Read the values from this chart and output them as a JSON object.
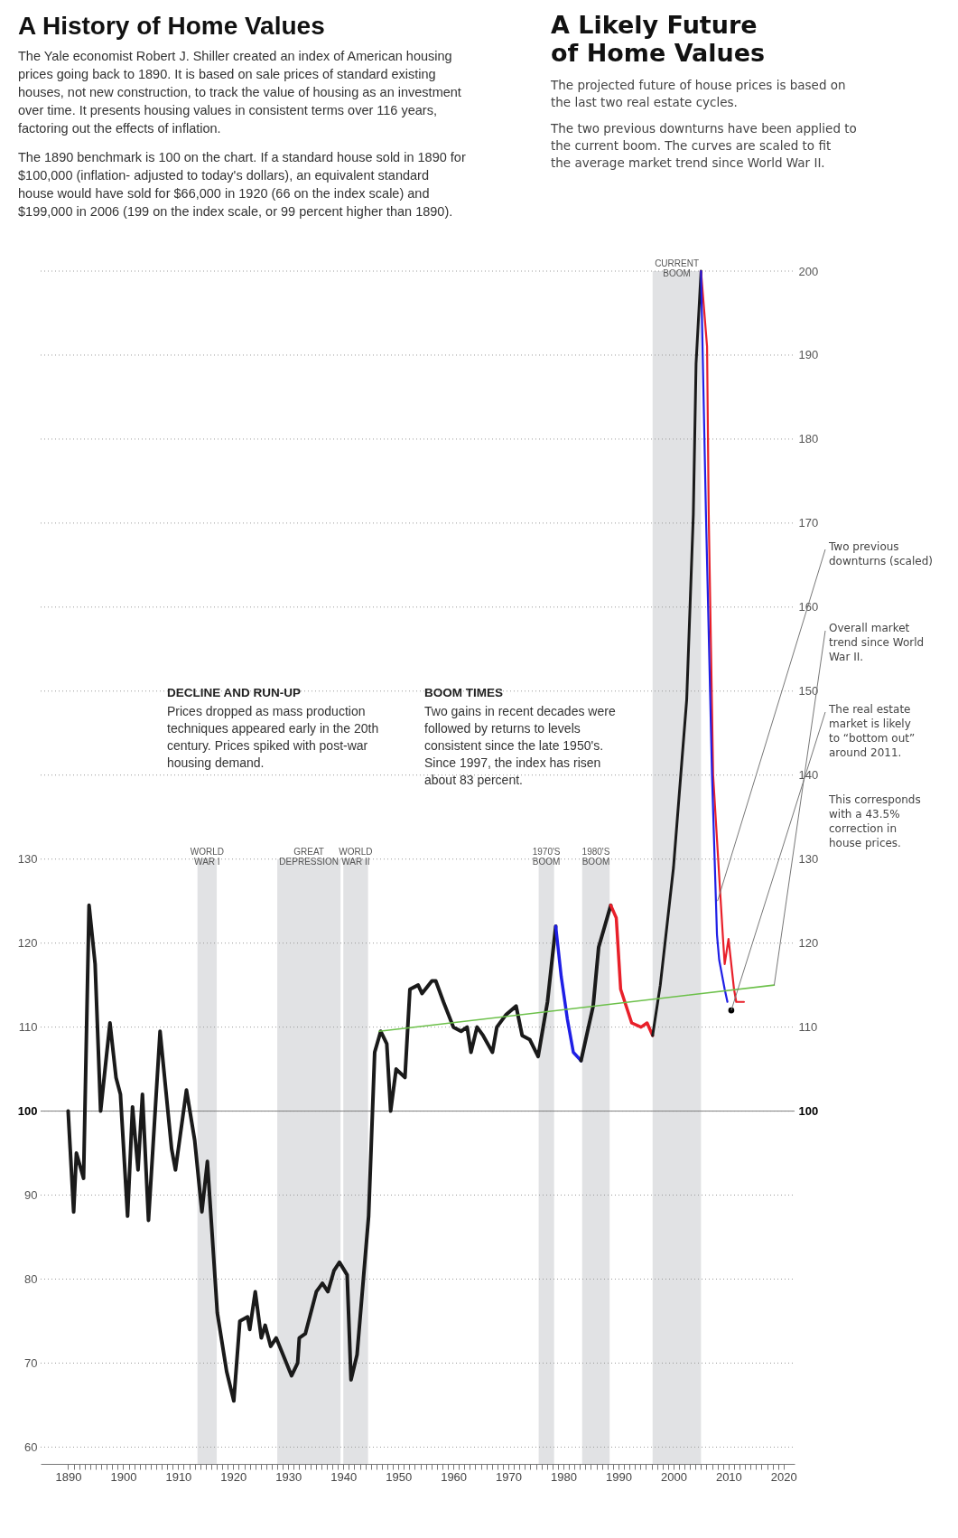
{
  "chart_data": {
    "type": "line",
    "title": "A History of Home Values",
    "annotations": [
      "The Yale economist Robert J. Shiller created an index of American housing prices going back to 1890. It is based on sale prices of standard existing houses, not new construction, to track the value of housing as an investment over time. It presents housing values in consistent terms over 116 years, factoring out the effects of inflation.",
      "The 1890 benchmark is 100 on the chart. If a standard house sold in 1890 for $100,000 (inflation- adjusted to today's dollars), an equivalent standard house would have sold for $66,000 in 1920 (66 on the index scale) and $199,000 in 2006 (199 on the index scale, or 99 percent higher than 1890).",
      "DECLINE AND RUN-UP",
      "Prices dropped as mass production techniques appeared early in the 20th century. Prices spiked with post-war housing demand.",
      "BOOM TIMES",
      "Two gains in recent decades were followed by returns to levels consistent since the late 1950's. Since 1997, the index has risen about 83 percent.",
      "A Likely Future of Home Values",
      "The projected future of house prices is based on the last two real estate cycles.",
      "The two previous downturns have been applied to the current boom. The curves are scaled to fit the average market trend since World War II.",
      {
        "text": "Two previous downturns (scaled)",
        "x": 2008,
        "y": 125
      },
      {
        "text": "Overall market trend since World War II.",
        "x": 2018.3,
        "y": 115
      },
      {
        "text": "The real estate market is likely to “bottom out” around 2011.",
        "x": 2010.5,
        "y": 112
      },
      "This corresponds with a 43.5% correction in house prices."
    ],
    "series": [
      {
        "color": "#1a1a1a",
        "x": [
          1890,
          1891,
          1891.5,
          1892.8,
          1893.8,
          1894.9,
          1895.9,
          1897.6,
          1898.7,
          1899.5,
          1900.8,
          1901.7,
          1902.7,
          1903.5,
          1904.6,
          1906.7,
          1908.8,
          1909.5,
          1911.5,
          1913,
          1914.3,
          1915.3,
          1917.1,
          1918.8,
          1920.1,
          1921.2,
          1922.6,
          1923,
          1924,
          1925.1,
          1925.8,
          1926.8,
          1927.8,
          1930.6,
          1931.7,
          1932,
          1933.1,
          1934.1,
          1935.1,
          1936.2,
          1937.2,
          1938.3,
          1939.3,
          1940.7,
          1941.4,
          1942.5,
          1944.6,
          1945.7,
          1946.8,
          1947.9,
          1948.6,
          1949.6,
          1950.4,
          1951.2,
          1952.1,
          1953.6,
          1954.3,
          1956.1,
          1956.8,
          1958.2,
          1960,
          1961.4,
          1962.5,
          1963.2,
          1964.3,
          1965.4,
          1967.1,
          1967.9,
          1969.6,
          1971.4,
          1972.5,
          1973.9,
          1975.4,
          1977.1,
          1978.6
        ],
        "values": [
          100,
          88,
          95,
          92,
          124.5,
          117.5,
          100,
          110.5,
          104,
          102,
          87.5,
          100.5,
          93,
          102,
          87,
          109.5,
          95.5,
          93,
          102.5,
          96.5,
          88,
          94,
          76,
          69,
          65.5,
          75,
          75.5,
          74,
          78.5,
          73,
          74.5,
          72,
          73,
          68.5,
          70,
          73,
          73.5,
          76,
          78.5,
          79.5,
          78.5,
          81,
          82,
          80.5,
          68,
          71,
          87.5,
          107,
          109.5,
          108,
          100,
          105,
          104.5,
          104,
          114.5,
          115,
          114,
          115.5,
          115.5,
          113,
          110,
          109.5,
          110,
          107,
          110,
          109,
          107,
          110,
          111.5,
          112.5,
          109,
          108.5,
          106.5,
          113,
          122
        ]
      },
      {
        "color": "#1f1fe6",
        "x": [
          1978.6,
          1979.6,
          1980.7,
          1981.8,
          1983.2
        ],
        "values": [
          122,
          116,
          111,
          107,
          106
        ]
      },
      {
        "color": "#1a1a1a",
        "x": [
          1983.2,
          1985.4,
          1986.4,
          1988.6
        ],
        "values": [
          106,
          112.5,
          119.5,
          124.5
        ]
      },
      {
        "color": "#e8202a",
        "x": [
          1988.6,
          1989.6,
          1990.4,
          1992.4,
          1994.1,
          1995.2,
          1996.2
        ],
        "values": [
          124.5,
          123,
          114.5,
          110.5,
          110,
          110.5,
          109
        ]
      },
      {
        "color": "#1a1a1a",
        "x": [
          1996.2,
          1997.6,
          2000,
          2002.4,
          2003.6,
          2004.1,
          2005
        ],
        "values": [
          109,
          115,
          129,
          149,
          171,
          189,
          200
        ]
      },
      {
        "color": "#e8202a",
        "x": [
          2005,
          2006.1,
          2006.4,
          2007.2,
          2008.3,
          2009,
          2009.3,
          2010,
          2011,
          2011.4,
          2012.8
        ],
        "values": [
          200,
          191,
          171,
          140,
          128,
          120.5,
          117.5,
          120.5,
          114.5,
          113,
          113
        ]
      },
      {
        "color": "#1f1fe6",
        "x": [
          2005,
          2005.9,
          2007,
          2007.9,
          2008.3,
          2009.3,
          2009.8
        ],
        "values": [
          200,
          171,
          140,
          121,
          118,
          114.5,
          113
        ]
      },
      {
        "color": "#6cc04a",
        "x": [
          1946.5,
          2018.3
        ],
        "values": [
          109.5,
          115
        ]
      },
      {
        "type": "scatter",
        "color": "#000000",
        "x": [
          2010.5
        ],
        "values": [
          112
        ]
      }
    ],
    "bands": [
      {
        "axis": "x",
        "from": 1913.5,
        "to": 1917,
        "label": "WORLD WAR I",
        "color": "#e1e2e4"
      },
      {
        "axis": "x",
        "from": 1928,
        "to": 1939.5,
        "label": "GREAT DEPRESSION",
        "color": "#e1e2e4"
      },
      {
        "axis": "x",
        "from": 1940,
        "to": 1944.5,
        "label": "WORLD WAR II",
        "color": "#e1e2e4"
      },
      {
        "axis": "x",
        "from": 1975.5,
        "to": 1978.3,
        "label": "1970'S BOOM",
        "color": "#e1e2e4"
      },
      {
        "axis": "x",
        "from": 1983.4,
        "to": 1988.4,
        "label": "1980'S BOOM",
        "color": "#e1e2e4"
      },
      {
        "axis": "x",
        "from": 1996.2,
        "to": 2005,
        "label": "CURRENT BOOM",
        "color": "#e1e2e4"
      }
    ],
    "ref_lines": [
      {
        "axis": "y",
        "value": 100,
        "color": "#808080"
      }
    ],
    "grid": true,
    "xlim": [
      1885,
      2022
    ],
    "xticks": [
      1890,
      {
        "value": 1891,
        "label": null
      },
      {
        "value": 1892,
        "label": null
      },
      {
        "value": 1893,
        "label": null
      },
      {
        "value": 1894,
        "label": null
      },
      {
        "value": 1895,
        "label": null
      },
      {
        "value": 1896,
        "label": null
      },
      {
        "value": 1897,
        "label": null
      },
      {
        "value": 1898,
        "label": null
      },
      {
        "value": 1899,
        "label": null
      },
      1900,
      {
        "value": 1901,
        "label": null
      },
      {
        "value": 1902,
        "label": null
      },
      {
        "value": 1903,
        "label": null
      },
      {
        "value": 1904,
        "label": null
      },
      {
        "value": 1905,
        "label": null
      },
      {
        "value": 1906,
        "label": null
      },
      {
        "value": 1907,
        "label": null
      },
      {
        "value": 1908,
        "label": null
      },
      {
        "value": 1909,
        "label": null
      },
      1910,
      {
        "value": 1911,
        "label": null
      },
      {
        "value": 1912,
        "label": null
      },
      {
        "value": 1913,
        "label": null
      },
      {
        "value": 1914,
        "label": null
      },
      {
        "value": 1915,
        "label": null
      },
      {
        "value": 1916,
        "label": null
      },
      {
        "value": 1917,
        "label": null
      },
      {
        "value": 1918,
        "label": null
      },
      {
        "value": 1919,
        "label": null
      },
      1920,
      {
        "value": 1921,
        "label": null
      },
      {
        "value": 1922,
        "label": null
      },
      {
        "value": 1923,
        "label": null
      },
      {
        "value": 1924,
        "label": null
      },
      {
        "value": 1925,
        "label": null
      },
      {
        "value": 1926,
        "label": null
      },
      {
        "value": 1927,
        "label": null
      },
      {
        "value": 1928,
        "label": null
      },
      {
        "value": 1929,
        "label": null
      },
      1930,
      {
        "value": 1931,
        "label": null
      },
      {
        "value": 1932,
        "label": null
      },
      {
        "value": 1933,
        "label": null
      },
      {
        "value": 1934,
        "label": null
      },
      {
        "value": 1935,
        "label": null
      },
      {
        "value": 1936,
        "label": null
      },
      {
        "value": 1937,
        "label": null
      },
      {
        "value": 1938,
        "label": null
      },
      {
        "value": 1939,
        "label": null
      },
      1940,
      {
        "value": 1941,
        "label": null
      },
      {
        "value": 1942,
        "label": null
      },
      {
        "value": 1943,
        "label": null
      },
      {
        "value": 1944,
        "label": null
      },
      {
        "value": 1945,
        "label": null
      },
      {
        "value": 1946,
        "label": null
      },
      {
        "value": 1947,
        "label": null
      },
      {
        "value": 1948,
        "label": null
      },
      {
        "value": 1949,
        "label": null
      },
      1950,
      {
        "value": 1951,
        "label": null
      },
      {
        "value": 1952,
        "label": null
      },
      {
        "value": 1953,
        "label": null
      },
      {
        "value": 1954,
        "label": null
      },
      {
        "value": 1955,
        "label": null
      },
      {
        "value": 1956,
        "label": null
      },
      {
        "value": 1957,
        "label": null
      },
      {
        "value": 1958,
        "label": null
      },
      {
        "value": 1959,
        "label": null
      },
      1960,
      {
        "value": 1961,
        "label": null
      },
      {
        "value": 1962,
        "label": null
      },
      {
        "value": 1963,
        "label": null
      },
      {
        "value": 1964,
        "label": null
      },
      {
        "value": 1965,
        "label": null
      },
      {
        "value": 1966,
        "label": null
      },
      {
        "value": 1967,
        "label": null
      },
      {
        "value": 1968,
        "label": null
      },
      {
        "value": 1969,
        "label": null
      },
      1970,
      {
        "value": 1971,
        "label": null
      },
      {
        "value": 1972,
        "label": null
      },
      {
        "value": 1973,
        "label": null
      },
      {
        "value": 1974,
        "label": null
      },
      {
        "value": 1975,
        "label": null
      },
      {
        "value": 1976,
        "label": null
      },
      {
        "value": 1977,
        "label": null
      },
      {
        "value": 1978,
        "label": null
      },
      {
        "value": 1979,
        "label": null
      },
      1980,
      {
        "value": 1981,
        "label": null
      },
      {
        "value": 1982,
        "label": null
      },
      {
        "value": 1983,
        "label": null
      },
      {
        "value": 1984,
        "label": null
      },
      {
        "value": 1985,
        "label": null
      },
      {
        "value": 1986,
        "label": null
      },
      {
        "value": 1987,
        "label": null
      },
      {
        "value": 1988,
        "label": null
      },
      {
        "value": 1989,
        "label": null
      },
      1990,
      {
        "value": 1991,
        "label": null
      },
      {
        "value": 1992,
        "label": null
      },
      {
        "value": 1993,
        "label": null
      },
      {
        "value": 1994,
        "label": null
      },
      {
        "value": 1995,
        "label": null
      },
      {
        "value": 1996,
        "label": null
      },
      {
        "value": 1997,
        "label": null
      },
      {
        "value": 1998,
        "label": null
      },
      {
        "value": 1999,
        "label": null
      },
      2000,
      {
        "value": 2001,
        "label": null
      },
      {
        "value": 2002,
        "label": null
      },
      {
        "value": 2003,
        "label": null
      },
      {
        "value": 2004,
        "label": null
      },
      {
        "value": 2005,
        "label": null
      },
      {
        "value": 2006,
        "label": null
      },
      {
        "value": 2007,
        "label": null
      },
      {
        "value": 2008,
        "label": null
      },
      {
        "value": 2009,
        "label": null
      },
      2010,
      {
        "value": 2011,
        "label": null
      },
      {
        "value": 2012,
        "label": null
      },
      {
        "value": 2013,
        "label": null
      },
      {
        "value": 2014,
        "label": null
      },
      {
        "value": 2015,
        "label": null
      },
      {
        "value": 2016,
        "label": null
      },
      {
        "value": 2017,
        "label": null
      },
      {
        "value": 2018,
        "label": null
      },
      {
        "value": 2019,
        "label": null
      },
      2020
    ],
    "ylim": [
      58,
      200
    ],
    "yticks": [
      60,
      70,
      80,
      90,
      100,
      110,
      120,
      130
    ],
    "y2lim": [
      58,
      200
    ],
    "y2ticks": [
      100,
      110,
      120,
      130,
      140,
      150,
      160,
      170,
      180,
      190,
      200
    ]
  }
}
